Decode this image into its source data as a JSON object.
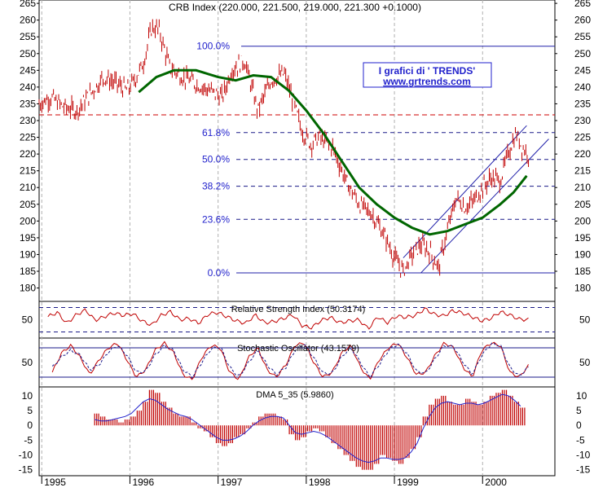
{
  "chart_data": [
    {
      "type": "line",
      "title": "CRB Index (220.000, 221.500, 219.000, 221.300 +0.1000)",
      "ylim": [
        176,
        266
      ],
      "y_ticks": [
        265,
        260,
        255,
        250,
        245,
        240,
        235,
        230,
        225,
        220,
        215,
        210,
        205,
        200,
        195,
        190,
        185,
        180
      ],
      "x_ticks": [
        "1995",
        "1996",
        "1997",
        "1998",
        "1999",
        "2000"
      ],
      "watermark": {
        "line1": "I grafici di  ' TRENDS'",
        "line2": "www.grtrends.com"
      },
      "fibonacci_levels": [
        {
          "label": "100.0%",
          "value": 252.2
        },
        {
          "label": "61.8%",
          "value": 226.4
        },
        {
          "label": "50.0%",
          "value": 218.4
        },
        {
          "label": "38.2%",
          "value": 210.4
        },
        {
          "label": "23.6%",
          "value": 200.5
        },
        {
          "label": "0.0%",
          "value": 184.5
        }
      ],
      "support_line_value": 231.7,
      "series": [
        {
          "color": "#c00000",
          "points": [
            [
              1994.97,
              235
            ],
            [
              1995.1,
              237
            ],
            [
              1995.25,
              234
            ],
            [
              1995.4,
              233
            ],
            [
              1995.55,
              238
            ],
            [
              1995.7,
              243
            ],
            [
              1995.85,
              241
            ],
            [
              1995.97,
              239
            ],
            [
              1996.05,
              242
            ],
            [
              1996.15,
              247
            ],
            [
              1996.25,
              258
            ],
            [
              1996.33,
              257
            ],
            [
              1996.45,
              246
            ],
            [
              1996.6,
              243
            ],
            [
              1996.75,
              241
            ],
            [
              1996.9,
              239
            ],
            [
              1997.05,
              237
            ],
            [
              1997.15,
              245
            ],
            [
              1997.3,
              248
            ],
            [
              1997.45,
              233
            ],
            [
              1997.6,
              242
            ],
            [
              1997.75,
              244
            ],
            [
              1997.85,
              236
            ],
            [
              1997.95,
              227
            ],
            [
              1998.05,
              223
            ],
            [
              1998.15,
              225
            ],
            [
              1998.3,
              222
            ],
            [
              1998.45,
              212
            ],
            [
              1998.6,
              205
            ],
            [
              1998.75,
              202
            ],
            [
              1998.9,
              195
            ],
            [
              1999.0,
              189
            ],
            [
              1999.1,
              185
            ],
            [
              1999.2,
              190
            ],
            [
              1999.3,
              193
            ],
            [
              1999.4,
              191
            ],
            [
              1999.5,
              186
            ],
            [
              1999.6,
              197
            ],
            [
              1999.7,
              207
            ],
            [
              1999.8,
              204
            ],
            [
              1999.9,
              206
            ],
            [
              2000.0,
              210
            ],
            [
              2000.1,
              213
            ],
            [
              2000.2,
              212
            ],
            [
              2000.3,
              221
            ],
            [
              2000.38,
              226
            ],
            [
              2000.45,
              222
            ],
            [
              2000.52,
              220
            ]
          ]
        },
        {
          "name": "moving average",
          "color": "#006600",
          "points": [
            [
              1996.1,
              238.5
            ],
            [
              1996.3,
              243
            ],
            [
              1996.5,
              245
            ],
            [
              1996.75,
              245
            ],
            [
              1997.0,
              243
            ],
            [
              1997.2,
              242
            ],
            [
              1997.4,
              243.5
            ],
            [
              1997.6,
              243
            ],
            [
              1997.8,
              239
            ],
            [
              1998.0,
              233
            ],
            [
              1998.2,
              226
            ],
            [
              1998.4,
              218
            ],
            [
              1998.6,
              210
            ],
            [
              1998.8,
              205
            ],
            [
              1999.0,
              201
            ],
            [
              1999.2,
              198
            ],
            [
              1999.4,
              196
            ],
            [
              1999.6,
              197
            ],
            [
              1999.8,
              199
            ],
            [
              2000.0,
              201
            ],
            [
              2000.2,
              205
            ],
            [
              2000.35,
              208.5
            ],
            [
              2000.5,
              213.5
            ]
          ]
        }
      ],
      "channel_lines": [
        [
          [
            1999.1,
            189
          ],
          [
            2000.5,
            228.5
          ]
        ],
        [
          [
            1999.3,
            184.5
          ],
          [
            2000.75,
            224.5
          ]
        ]
      ]
    },
    {
      "type": "line",
      "title": "Relative Strength Index (50.3174)",
      "y_ticks": [
        50
      ],
      "ylim": [
        20,
        80
      ],
      "reference_lines": [
        70,
        30
      ],
      "series": [
        {
          "color": "#c00000",
          "values": [
            55,
            62,
            44,
            58,
            66,
            49,
            55,
            61,
            57,
            60,
            48,
            41,
            57,
            63,
            50,
            52,
            44,
            59,
            62,
            55,
            48,
            44,
            58,
            45,
            47,
            52,
            58,
            40,
            37,
            49,
            54,
            45,
            48,
            50,
            35,
            55,
            45,
            56,
            54,
            57,
            68,
            59,
            56,
            65,
            61,
            55,
            48,
            52,
            63,
            58,
            51,
            50
          ]
        }
      ]
    },
    {
      "type": "line",
      "title": "Stochastic Oscillator (43.1579)",
      "y_ticks": [
        50
      ],
      "ylim": [
        0,
        100
      ],
      "reference_lines": [
        80,
        20
      ],
      "series": [
        {
          "color": "#c00000",
          "values": [
            30,
            70,
            85,
            60,
            25,
            55,
            80,
            90,
            55,
            20,
            35,
            75,
            90,
            70,
            25,
            15,
            60,
            85,
            80,
            30,
            15,
            60,
            80,
            35,
            20,
            45,
            85,
            90,
            50,
            20,
            30,
            70,
            85,
            40,
            15,
            55,
            80,
            90,
            60,
            25,
            30,
            65,
            90,
            80,
            40,
            20,
            75,
            90,
            85,
            30,
            20,
            43
          ]
        },
        {
          "color": "#1a1a8c",
          "values": [
            40,
            62,
            75,
            65,
            35,
            45,
            72,
            85,
            65,
            30,
            32,
            65,
            85,
            75,
            35,
            20,
            50,
            78,
            82,
            40,
            20,
            50,
            75,
            45,
            25,
            40,
            75,
            88,
            60,
            28,
            28,
            62,
            80,
            50,
            20,
            45,
            75,
            88,
            68,
            32,
            28,
            58,
            85,
            82,
            50,
            25,
            65,
            88,
            85,
            40,
            22,
            40
          ]
        }
      ]
    },
    {
      "type": "bar",
      "title": "DMA 5_35 (5.9860)",
      "ylim": [
        -17,
        13
      ],
      "y_ticks": [
        10,
        5,
        0,
        -5,
        -10,
        -15
      ],
      "x_range": [
        1995.6,
        2000.5
      ],
      "values": [
        4,
        3,
        2,
        2,
        1,
        2,
        3,
        5,
        8,
        12,
        11,
        8,
        6,
        4,
        3,
        3,
        1,
        -1,
        -2,
        -4,
        -6,
        -7,
        -6,
        -4,
        -3,
        -1,
        1,
        3,
        4,
        4,
        3,
        2,
        -3,
        -5,
        -4,
        -2,
        -1,
        -2,
        -4,
        -6,
        -8,
        -10,
        -12,
        -14,
        -15,
        -15,
        -13,
        -10,
        -11,
        -12,
        -13,
        -11,
        -8,
        -4,
        3,
        7,
        9,
        10,
        8,
        7,
        7,
        9,
        8,
        7,
        8,
        10,
        11,
        12,
        10,
        8,
        6
      ],
      "signal": [
        2,
        1.5,
        1.5,
        2,
        2.5,
        3,
        4,
        6,
        8,
        9,
        8.5,
        7,
        5.5,
        4.5,
        3.5,
        3,
        2,
        0.5,
        -1,
        -2.5,
        -4,
        -5,
        -5,
        -4.5,
        -3.5,
        -2,
        0,
        1.5,
        2.5,
        3,
        3,
        2.5,
        0,
        -2.5,
        -3,
        -2.5,
        -2,
        -2.5,
        -3.5,
        -5,
        -6.5,
        -8,
        -9.5,
        -11,
        -12,
        -12.5,
        -12,
        -11,
        -11,
        -11.5,
        -11.5,
        -11,
        -9,
        -6,
        -1,
        3,
        6,
        7.5,
        8,
        7.5,
        7,
        7.5,
        7.5,
        7,
        7.5,
        8.5,
        9.5,
        10.5,
        10,
        8.5,
        6.5
      ]
    }
  ]
}
